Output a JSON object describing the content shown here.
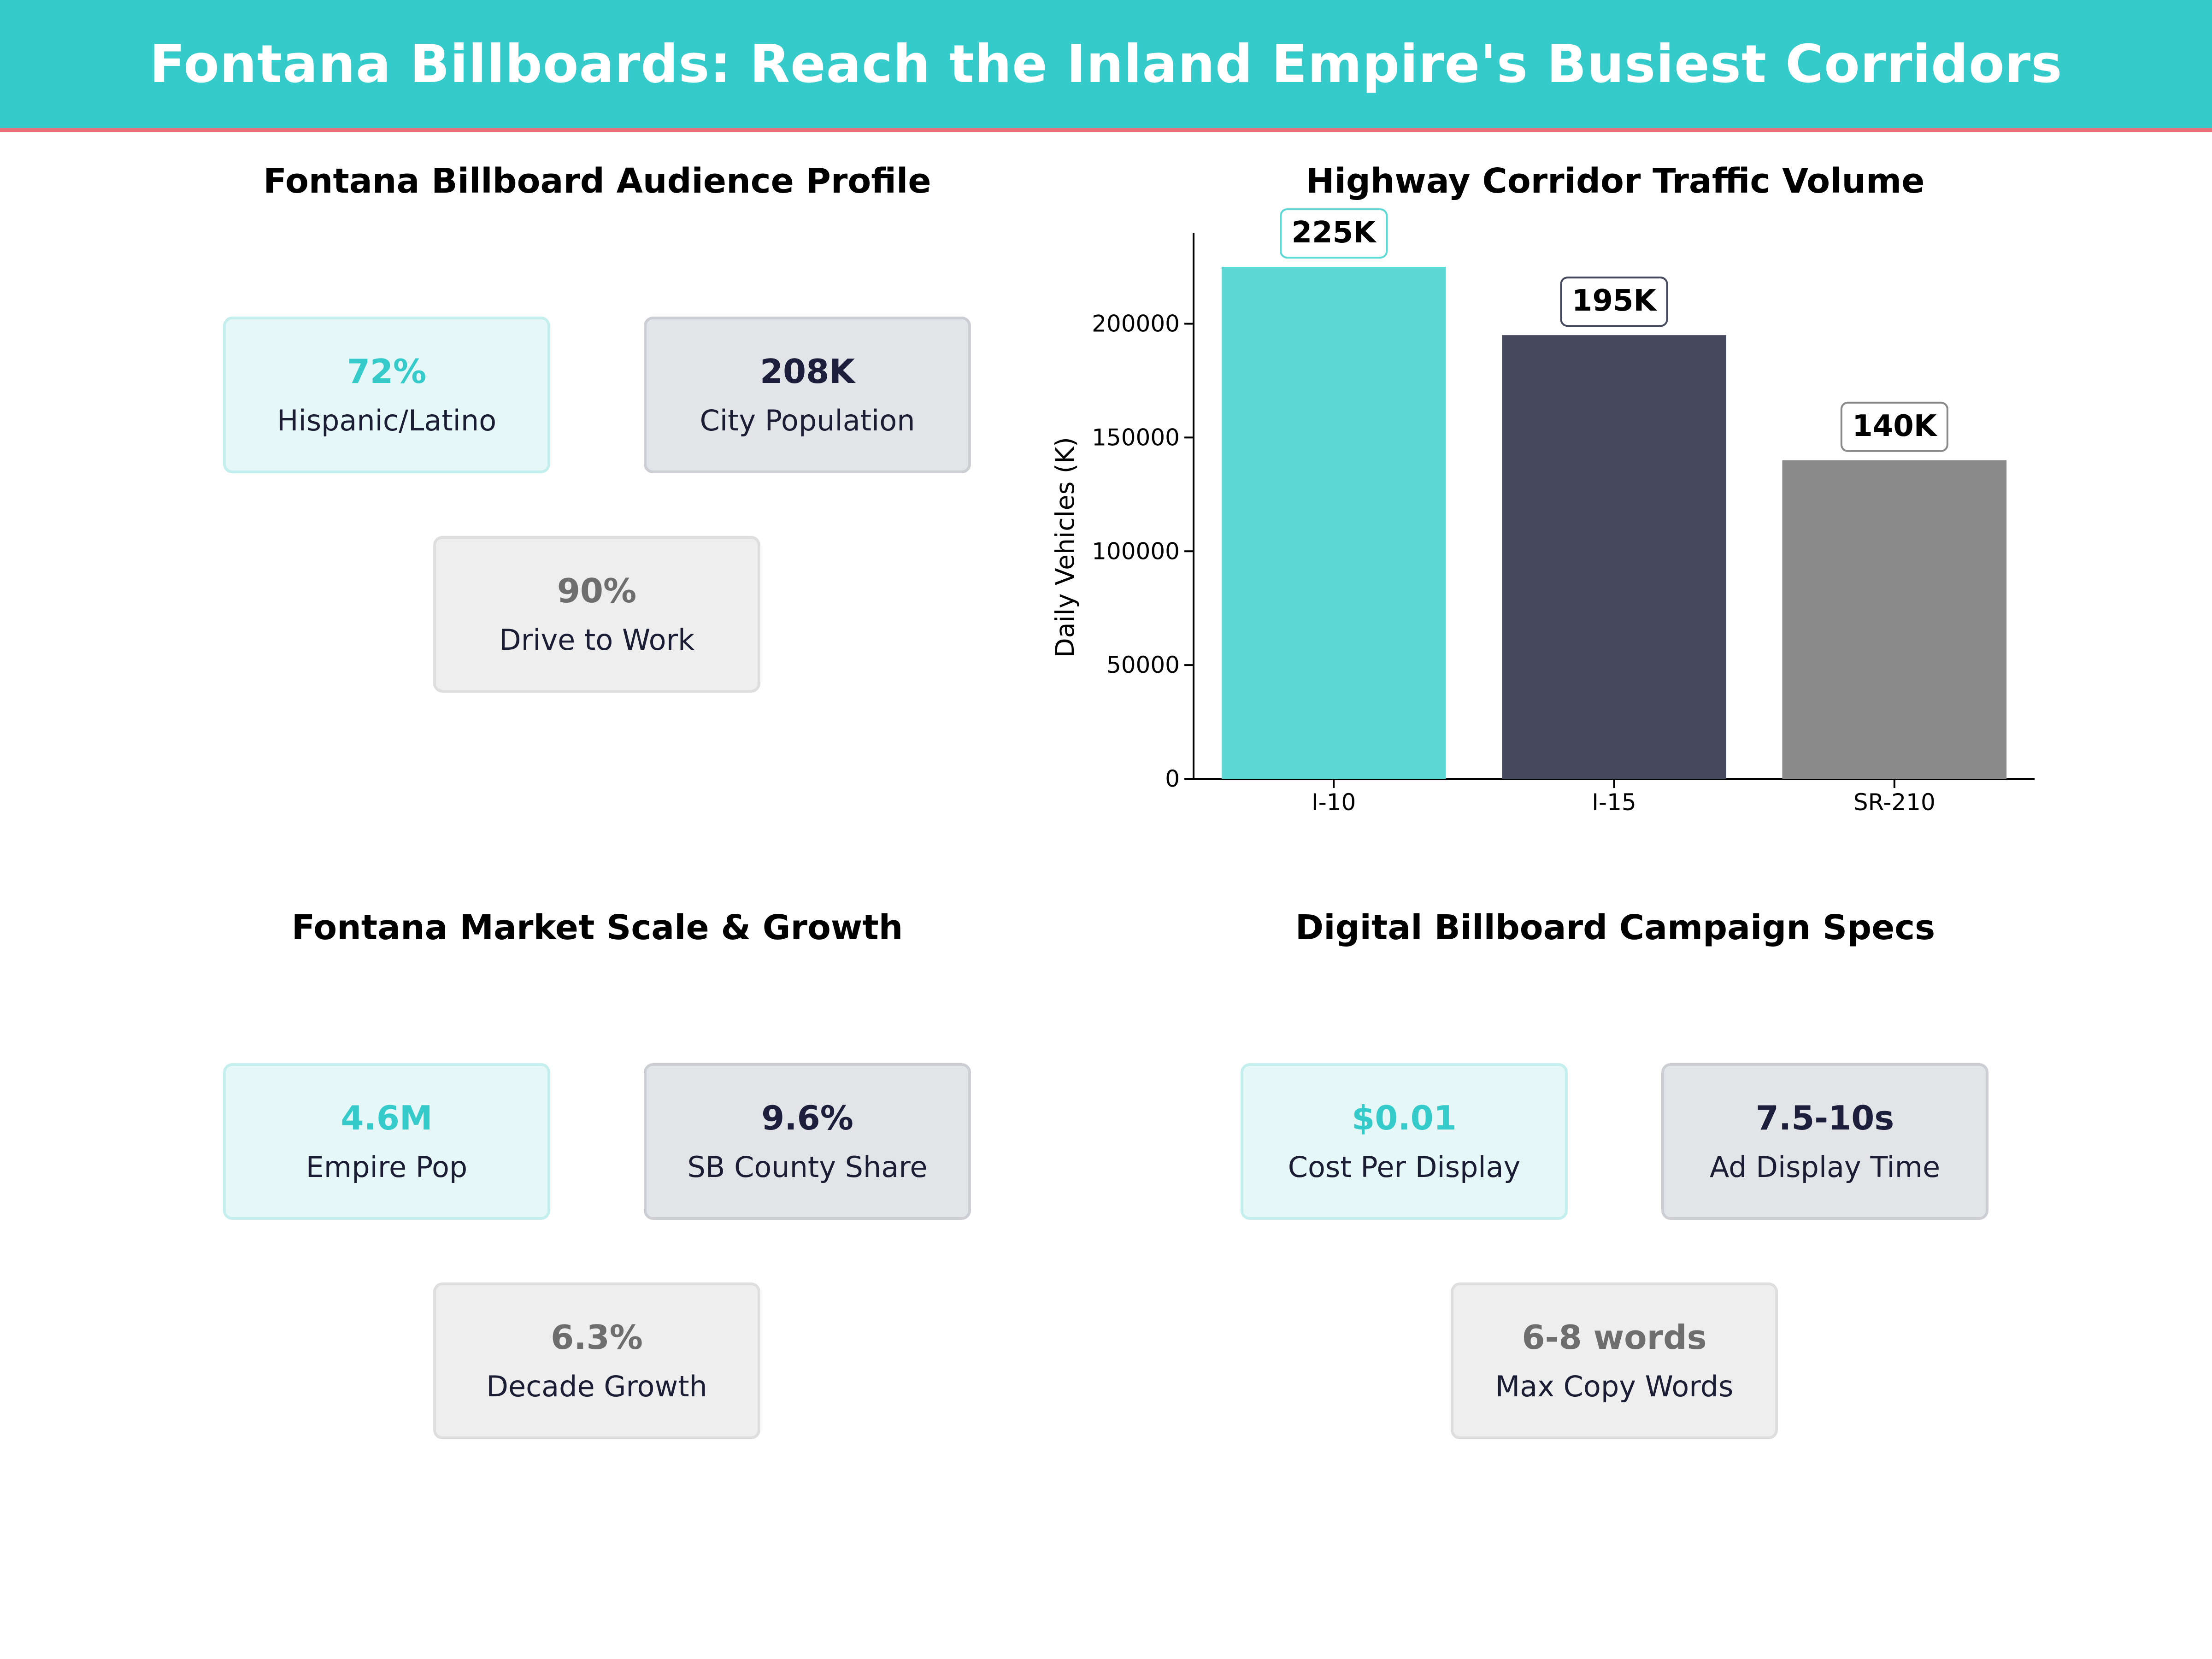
{
  "header": {
    "title": "Fontana Billboards: Reach the Inland Empire's Busiest Corridors"
  },
  "panels": {
    "audience": {
      "title": "Fontana Billboard Audience Profile",
      "cards": [
        {
          "value": "72%",
          "label": "Hispanic/Latino"
        },
        {
          "value": "208K",
          "label": "City Population"
        },
        {
          "value": "90%",
          "label": "Drive to Work"
        }
      ]
    },
    "traffic": {
      "title": "Highway Corridor Traffic Volume"
    },
    "market": {
      "title": "Fontana Market Scale & Growth",
      "cards": [
        {
          "value": "4.6M",
          "label": "Empire Pop"
        },
        {
          "value": "9.6%",
          "label": "SB County Share"
        },
        {
          "value": "6.3%",
          "label": "Decade Growth"
        }
      ]
    },
    "specs": {
      "title": "Digital Billboard Campaign Specs",
      "cards": [
        {
          "value": "$0.01",
          "label": "Cost Per Display"
        },
        {
          "value": "7.5-10s",
          "label": "Ad Display Time"
        },
        {
          "value": "6-8 words",
          "label": "Max Copy Words"
        }
      ]
    }
  },
  "chart_data": {
    "type": "bar",
    "title": "Highway Corridor Traffic Volume",
    "categories": [
      "I-10",
      "I-15",
      "SR-210"
    ],
    "values": [
      225000,
      195000,
      140000
    ],
    "data_labels": [
      "225K",
      "195K",
      "140K"
    ],
    "ylabel": "Daily Vehicles (K)",
    "xlabel": "",
    "ylim": [
      0,
      240000
    ],
    "yticks": [
      0,
      50000,
      100000,
      150000,
      200000
    ],
    "bar_colors": [
      "#5dd8d4",
      "#454a5f",
      "#8a8a8a"
    ],
    "label_border_colors": [
      "#5dd8d4",
      "#454a5f",
      "#8a8a8a"
    ],
    "grid": false,
    "legend": "none"
  },
  "colors": {
    "banner": "#35cbcb",
    "banner_accent": "#e8727a",
    "teal": "#35cbcb",
    "navy": "#1b1f3b",
    "gray": "#6e6e6e"
  }
}
